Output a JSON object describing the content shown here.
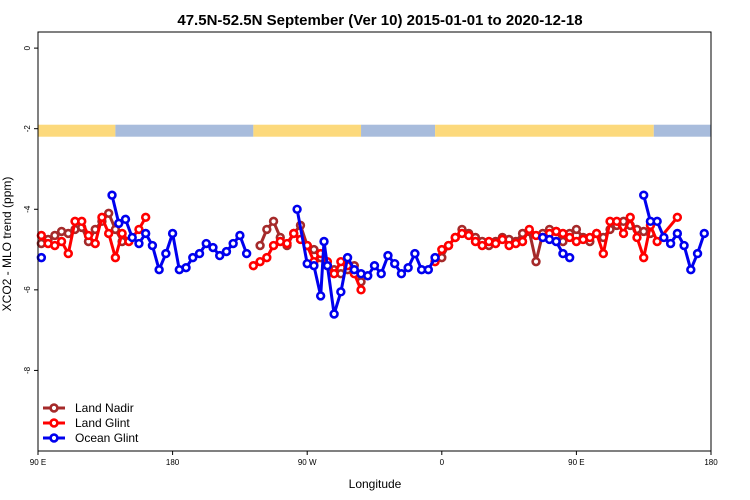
{
  "chart_data": {
    "type": "line",
    "title": "47.5N-52.5N September (Ver 10)   2015-01-01 to 2020-12-18",
    "xlabel": "Longitude",
    "ylabel": "XCO2 - MLO trend (ppm)",
    "xlim": [
      0,
      1
    ],
    "ylim": [
      -10,
      0.4
    ],
    "x_ticks": [
      {
        "x": 0.0,
        "label": "90 E"
      },
      {
        "x": 0.2,
        "label": "180"
      },
      {
        "x": 0.4,
        "label": "90 W"
      },
      {
        "x": 0.6,
        "label": "0"
      },
      {
        "x": 0.8,
        "label": "90 E"
      },
      {
        "x": 1.0,
        "label": "180"
      }
    ],
    "y_ticks": [
      0,
      -2,
      -4,
      -6,
      -8
    ],
    "land_mask": {
      "y_center": -2.05,
      "land_color": "#fcd97c",
      "ocean_color": "#a8bcdc",
      "segments": [
        {
          "from": 0.0,
          "to": 0.115,
          "type": "land"
        },
        {
          "from": 0.115,
          "to": 0.32,
          "type": "ocean"
        },
        {
          "from": 0.32,
          "to": 0.48,
          "type": "land"
        },
        {
          "from": 0.48,
          "to": 0.59,
          "type": "ocean"
        },
        {
          "from": 0.59,
          "to": 0.915,
          "type": "land"
        },
        {
          "from": 0.915,
          "to": 1.0,
          "type": "ocean"
        }
      ]
    },
    "legend_position": "bottom-left",
    "series": [
      {
        "name": "Land Nadir",
        "color": "#a52a2a",
        "points": [
          [
            0.005,
            -4.85
          ],
          [
            0.015,
            -4.75
          ],
          [
            0.025,
            -4.65
          ],
          [
            0.035,
            -4.55
          ],
          [
            0.045,
            -4.6
          ],
          [
            0.055,
            -4.5
          ],
          [
            0.065,
            -4.45
          ],
          [
            0.075,
            -4.8
          ],
          [
            0.085,
            -4.5
          ],
          [
            0.095,
            -4.3
          ],
          [
            0.105,
            -4.1
          ],
          [
            0.115,
            -4.5
          ],
          [
            0.125,
            -4.8
          ],
          [
            0.33,
            -4.9
          ],
          [
            0.34,
            -4.5
          ],
          [
            0.35,
            -4.3
          ],
          [
            0.36,
            -4.7
          ],
          [
            0.37,
            -4.9
          ],
          [
            0.38,
            -4.6
          ],
          [
            0.39,
            -4.4
          ],
          [
            0.4,
            -4.9
          ],
          [
            0.41,
            -5.0
          ],
          [
            0.42,
            -5.2
          ],
          [
            0.43,
            -5.4
          ],
          [
            0.44,
            -5.5
          ],
          [
            0.45,
            -5.6
          ],
          [
            0.46,
            -5.5
          ],
          [
            0.47,
            -5.4
          ],
          [
            0.48,
            -5.8
          ],
          [
            0.6,
            -5.2
          ],
          [
            0.61,
            -4.9
          ],
          [
            0.62,
            -4.7
          ],
          [
            0.63,
            -4.5
          ],
          [
            0.64,
            -4.6
          ],
          [
            0.65,
            -4.7
          ],
          [
            0.66,
            -4.8
          ],
          [
            0.67,
            -4.9
          ],
          [
            0.68,
            -4.8
          ],
          [
            0.69,
            -4.7
          ],
          [
            0.7,
            -4.75
          ],
          [
            0.71,
            -4.8
          ],
          [
            0.72,
            -4.6
          ],
          [
            0.73,
            -4.55
          ],
          [
            0.74,
            -5.3
          ],
          [
            0.75,
            -4.6
          ],
          [
            0.76,
            -4.5
          ],
          [
            0.77,
            -4.55
          ],
          [
            0.78,
            -4.8
          ],
          [
            0.79,
            -4.6
          ],
          [
            0.8,
            -4.5
          ],
          [
            0.81,
            -4.7
          ],
          [
            0.82,
            -4.8
          ],
          [
            0.83,
            -4.6
          ],
          [
            0.84,
            -4.7
          ],
          [
            0.85,
            -4.5
          ],
          [
            0.86,
            -4.4
          ],
          [
            0.87,
            -4.3
          ],
          [
            0.88,
            -4.4
          ],
          [
            0.89,
            -4.5
          ],
          [
            0.9,
            -4.55
          ],
          [
            0.91,
            -4.6
          ]
        ]
      },
      {
        "name": "Land Glint",
        "color": "#ff0000",
        "points": [
          [
            0.005,
            -4.65
          ],
          [
            0.015,
            -4.85
          ],
          [
            0.025,
            -4.9
          ],
          [
            0.035,
            -4.8
          ],
          [
            0.045,
            -5.1
          ],
          [
            0.055,
            -4.3
          ],
          [
            0.065,
            -4.3
          ],
          [
            0.075,
            -4.65
          ],
          [
            0.085,
            -4.85
          ],
          [
            0.095,
            -4.2
          ],
          [
            0.105,
            -4.6
          ],
          [
            0.115,
            -5.2
          ],
          [
            0.125,
            -4.6
          ],
          [
            0.135,
            -4.8
          ],
          [
            0.15,
            -4.5
          ],
          [
            0.16,
            -4.2
          ],
          [
            0.32,
            -5.4
          ],
          [
            0.33,
            -5.3
          ],
          [
            0.34,
            -5.2
          ],
          [
            0.35,
            -4.9
          ],
          [
            0.36,
            -4.8
          ],
          [
            0.37,
            -4.85
          ],
          [
            0.38,
            -4.6
          ],
          [
            0.39,
            -4.75
          ],
          [
            0.4,
            -4.9
          ],
          [
            0.41,
            -5.3
          ],
          [
            0.42,
            -5.1
          ],
          [
            0.43,
            -5.3
          ],
          [
            0.44,
            -5.6
          ],
          [
            0.45,
            -5.3
          ],
          [
            0.46,
            -5.4
          ],
          [
            0.47,
            -5.6
          ],
          [
            0.48,
            -6.0
          ],
          [
            0.59,
            -5.3
          ],
          [
            0.6,
            -5.0
          ],
          [
            0.61,
            -4.9
          ],
          [
            0.62,
            -4.7
          ],
          [
            0.63,
            -4.6
          ],
          [
            0.64,
            -4.65
          ],
          [
            0.65,
            -4.8
          ],
          [
            0.66,
            -4.9
          ],
          [
            0.67,
            -4.8
          ],
          [
            0.68,
            -4.85
          ],
          [
            0.69,
            -4.75
          ],
          [
            0.7,
            -4.9
          ],
          [
            0.71,
            -4.85
          ],
          [
            0.72,
            -4.8
          ],
          [
            0.73,
            -4.5
          ],
          [
            0.74,
            -4.65
          ],
          [
            0.75,
            -4.7
          ],
          [
            0.76,
            -4.6
          ],
          [
            0.77,
            -4.55
          ],
          [
            0.78,
            -4.6
          ],
          [
            0.79,
            -4.7
          ],
          [
            0.8,
            -4.8
          ],
          [
            0.81,
            -4.75
          ],
          [
            0.82,
            -4.7
          ],
          [
            0.83,
            -4.6
          ],
          [
            0.84,
            -5.1
          ],
          [
            0.85,
            -4.3
          ],
          [
            0.86,
            -4.3
          ],
          [
            0.87,
            -4.6
          ],
          [
            0.88,
            -4.2
          ],
          [
            0.89,
            -4.7
          ],
          [
            0.9,
            -5.2
          ],
          [
            0.91,
            -4.4
          ],
          [
            0.92,
            -4.8
          ],
          [
            0.95,
            -4.2
          ]
        ]
      },
      {
        "name": "Ocean Glint",
        "color": "#0000ee",
        "points": [
          [
            0.005,
            -5.2
          ],
          [
            0.11,
            -3.65
          ],
          [
            0.12,
            -4.35
          ],
          [
            0.13,
            -4.25
          ],
          [
            0.14,
            -4.7
          ],
          [
            0.15,
            -4.85
          ],
          [
            0.16,
            -4.6
          ],
          [
            0.17,
            -4.9
          ],
          [
            0.18,
            -5.5
          ],
          [
            0.19,
            -5.1
          ],
          [
            0.2,
            -4.6
          ],
          [
            0.21,
            -5.5
          ],
          [
            0.22,
            -5.45
          ],
          [
            0.23,
            -5.2
          ],
          [
            0.24,
            -5.1
          ],
          [
            0.25,
            -4.85
          ],
          [
            0.26,
            -4.95
          ],
          [
            0.27,
            -5.15
          ],
          [
            0.28,
            -5.05
          ],
          [
            0.29,
            -4.85
          ],
          [
            0.3,
            -4.65
          ],
          [
            0.31,
            -5.1
          ],
          [
            0.385,
            -4.0
          ],
          [
            0.4,
            -5.35
          ],
          [
            0.41,
            -5.4
          ],
          [
            0.42,
            -6.15
          ],
          [
            0.425,
            -4.8
          ],
          [
            0.43,
            -5.4
          ],
          [
            0.44,
            -6.6
          ],
          [
            0.45,
            -6.05
          ],
          [
            0.46,
            -5.2
          ],
          [
            0.47,
            -5.5
          ],
          [
            0.48,
            -5.6
          ],
          [
            0.49,
            -5.65
          ],
          [
            0.5,
            -5.4
          ],
          [
            0.51,
            -5.6
          ],
          [
            0.52,
            -5.15
          ],
          [
            0.53,
            -5.35
          ],
          [
            0.54,
            -5.6
          ],
          [
            0.55,
            -5.45
          ],
          [
            0.56,
            -5.1
          ],
          [
            0.57,
            -5.5
          ],
          [
            0.58,
            -5.5
          ],
          [
            0.59,
            -5.2
          ],
          [
            0.75,
            -4.7
          ],
          [
            0.76,
            -4.75
          ],
          [
            0.77,
            -4.8
          ],
          [
            0.78,
            -5.1
          ],
          [
            0.79,
            -5.2
          ],
          [
            0.9,
            -3.65
          ],
          [
            0.91,
            -4.3
          ],
          [
            0.92,
            -4.3
          ],
          [
            0.93,
            -4.7
          ],
          [
            0.94,
            -4.85
          ],
          [
            0.95,
            -4.6
          ],
          [
            0.96,
            -4.9
          ],
          [
            0.97,
            -5.5
          ],
          [
            0.98,
            -5.1
          ],
          [
            0.99,
            -4.6
          ]
        ]
      }
    ]
  }
}
